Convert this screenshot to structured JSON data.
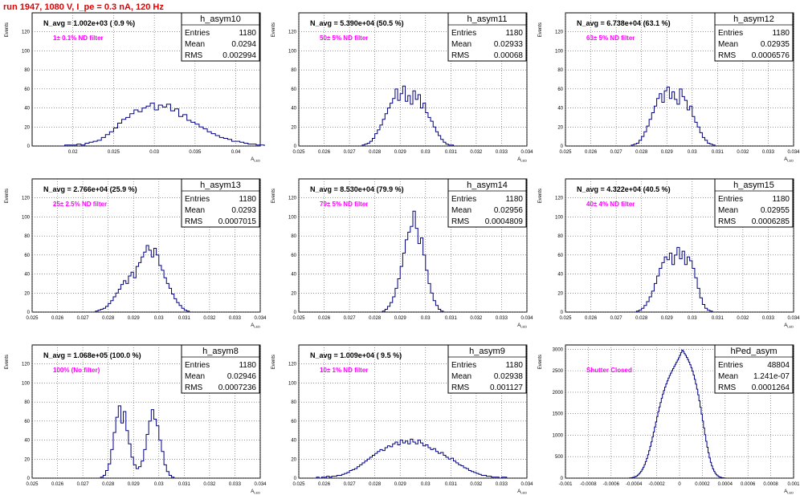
{
  "page": {
    "title": "run 1947,  1080 V, I_pe = 0.3 nA, 120 Hz"
  },
  "chart_data": [
    {
      "type": "histogram",
      "name": "h_asym10",
      "nd_label": "1± 0.1% ND filter",
      "navg": "N_avg = 1.002e+03 ( 0.9 %)",
      "stats": {
        "Entries": "1180",
        "Mean": "0.0294",
        "RMS": "0.002994"
      },
      "xlabel": "A_LED",
      "ylabel": "Events",
      "xlim": [
        0.015,
        0.043
      ],
      "ylim": [
        0,
        140
      ],
      "xticks": [
        0.02,
        0.025,
        0.03,
        0.035,
        0.04
      ],
      "xtick_labels": [
        "0.02",
        "0.025",
        "0.03",
        "0.035",
        "0.04"
      ],
      "yticks": [
        0,
        20,
        40,
        60,
        80,
        100,
        120
      ],
      "grid": true,
      "bins": {
        "start": 0.0185,
        "width": 0.0005,
        "counts": [
          0,
          1,
          1,
          1,
          2,
          1,
          3,
          4,
          5,
          6,
          9,
          12,
          15,
          19,
          24,
          28,
          30,
          34,
          38,
          36,
          40,
          42,
          45,
          38,
          43,
          41,
          44,
          37,
          39,
          31,
          33,
          27,
          25,
          23,
          20,
          18,
          15,
          13,
          11,
          9,
          8,
          7,
          5,
          5,
          4,
          3,
          2,
          2,
          1,
          1
        ]
      }
    },
    {
      "type": "histogram",
      "name": "h_asym11",
      "nd_label": "50± 5% ND filter",
      "navg": "N_avg = 5.390e+04 (50.5 %)",
      "stats": {
        "Entries": "1180",
        "Mean": "0.02933",
        "RMS": "0.00068"
      },
      "xlabel": "A_LED",
      "ylabel": "Events",
      "xlim": [
        0.025,
        0.034
      ],
      "ylim": [
        0,
        140
      ],
      "xticks": [
        0.025,
        0.026,
        0.027,
        0.028,
        0.029,
        0.03,
        0.031,
        0.032,
        0.033,
        0.034
      ],
      "xtick_labels": [
        "0.025",
        "0.026",
        "0.027",
        "0.028",
        "0.029",
        "0.03",
        "0.031",
        "0.032",
        "0.033",
        "0.034"
      ],
      "yticks": [
        0,
        20,
        40,
        60,
        80,
        100,
        120
      ],
      "grid": true,
      "bins": {
        "start": 0.0275,
        "width": 0.0001,
        "counts": [
          1,
          2,
          3,
          5,
          8,
          13,
          17,
          22,
          28,
          34,
          40,
          45,
          50,
          60,
          48,
          55,
          63,
          47,
          53,
          44,
          58,
          49,
          54,
          40,
          45,
          35,
          30,
          26,
          20,
          15,
          11,
          7,
          4,
          2,
          1,
          1
        ]
      }
    },
    {
      "type": "histogram",
      "name": "h_asym12",
      "nd_label": "63± 5% ND filter",
      "navg": "N_avg = 6.738e+04 (63.1 %)",
      "stats": {
        "Entries": "1180",
        "Mean": "0.02935",
        "RMS": "0.0006576"
      },
      "xlabel": "A_LED",
      "ylabel": "Events",
      "xlim": [
        0.025,
        0.034
      ],
      "ylim": [
        0,
        140
      ],
      "xticks": [
        0.025,
        0.026,
        0.027,
        0.028,
        0.029,
        0.03,
        0.031,
        0.032,
        0.033,
        0.034
      ],
      "xtick_labels": [
        "0.025",
        "0.026",
        "0.027",
        "0.028",
        "0.029",
        "0.03",
        "0.031",
        "0.032",
        "0.033",
        "0.034"
      ],
      "yticks": [
        0,
        20,
        40,
        60,
        80,
        100,
        120
      ],
      "grid": true,
      "bins": {
        "start": 0.0276,
        "width": 0.0001,
        "counts": [
          1,
          2,
          3,
          6,
          10,
          15,
          21,
          28,
          35,
          42,
          50,
          55,
          46,
          58,
          62,
          50,
          57,
          49,
          44,
          60,
          52,
          48,
          38,
          42,
          31,
          25,
          20,
          14,
          9,
          6,
          3,
          2,
          1
        ]
      }
    },
    {
      "type": "histogram",
      "name": "h_asym13",
      "nd_label": "25± 2.5% ND filter",
      "navg": "N_avg = 2.766e+04 (25.9 %)",
      "stats": {
        "Entries": "1180",
        "Mean": "0.0293",
        "RMS": "0.0007015"
      },
      "xlabel": "A_LED",
      "ylabel": "Events",
      "xlim": [
        0.025,
        0.034
      ],
      "ylim": [
        0,
        140
      ],
      "xticks": [
        0.025,
        0.026,
        0.027,
        0.028,
        0.029,
        0.03,
        0.031,
        0.032,
        0.033,
        0.034
      ],
      "xtick_labels": [
        "0.025",
        "0.026",
        "0.027",
        "0.028",
        "0.029",
        "0.03",
        "0.031",
        "0.032",
        "0.033",
        "0.034"
      ],
      "yticks": [
        0,
        20,
        40,
        60,
        80,
        100,
        120
      ],
      "grid": true,
      "bins": {
        "start": 0.0275,
        "width": 0.0001,
        "counts": [
          1,
          2,
          3,
          4,
          6,
          9,
          12,
          16,
          20,
          24,
          29,
          33,
          30,
          38,
          42,
          36,
          48,
          52,
          58,
          63,
          70,
          65,
          58,
          67,
          60,
          49,
          44,
          36,
          30,
          25,
          19,
          14,
          10,
          7,
          4,
          2,
          1
        ]
      }
    },
    {
      "type": "histogram",
      "name": "h_asym14",
      "nd_label": "79± 5% ND filter",
      "navg": "N_avg = 8.530e+04 (79.9 %)",
      "stats": {
        "Entries": "1180",
        "Mean": "0.02956",
        "RMS": "0.0004809"
      },
      "xlabel": "A_LED",
      "ylabel": "Events",
      "xlim": [
        0.025,
        0.034
      ],
      "ylim": [
        0,
        140
      ],
      "xticks": [
        0.025,
        0.026,
        0.027,
        0.028,
        0.029,
        0.03,
        0.031,
        0.032,
        0.033,
        0.034
      ],
      "xtick_labels": [
        "0.025",
        "0.026",
        "0.027",
        "0.028",
        "0.029",
        "0.03",
        "0.031",
        "0.032",
        "0.033",
        "0.034"
      ],
      "yticks": [
        0,
        20,
        40,
        60,
        80,
        100,
        120
      ],
      "grid": true,
      "bins": {
        "start": 0.0283,
        "width": 0.0001,
        "counts": [
          1,
          3,
          6,
          10,
          16,
          25,
          35,
          48,
          62,
          76,
          84,
          90,
          106,
          88,
          72,
          78,
          60,
          44,
          30,
          20,
          12,
          7,
          3,
          1
        ]
      }
    },
    {
      "type": "histogram",
      "name": "h_asym15",
      "nd_label": "40± 4% ND filter",
      "navg": "N_avg = 4.322e+04 (40.5 %)",
      "stats": {
        "Entries": "1180",
        "Mean": "0.02955",
        "RMS": "0.0006285"
      },
      "xlabel": "A_LED",
      "ylabel": "Events",
      "xlim": [
        0.025,
        0.034
      ],
      "ylim": [
        0,
        140
      ],
      "xticks": [
        0.025,
        0.026,
        0.027,
        0.028,
        0.029,
        0.03,
        0.031,
        0.032,
        0.033,
        0.034
      ],
      "xtick_labels": [
        "0.025",
        "0.026",
        "0.027",
        "0.028",
        "0.029",
        "0.03",
        "0.031",
        "0.032",
        "0.033",
        "0.034"
      ],
      "yticks": [
        0,
        20,
        40,
        60,
        80,
        100,
        120
      ],
      "grid": true,
      "bins": {
        "start": 0.0278,
        "width": 0.0001,
        "counts": [
          1,
          2,
          4,
          7,
          11,
          16,
          22,
          30,
          38,
          46,
          52,
          58,
          55,
          62,
          50,
          60,
          68,
          56,
          64,
          50,
          58,
          54,
          46,
          36,
          25,
          15,
          8,
          4,
          2,
          1
        ]
      }
    },
    {
      "type": "histogram",
      "name": "h_asym8",
      "nd_label": "100% (No filter)",
      "navg": "N_avg = 1.068e+05 (100.0 %)",
      "stats": {
        "Entries": "1180",
        "Mean": "0.02946",
        "RMS": "0.0007236"
      },
      "xlabel": "A_LED",
      "ylabel": "Events",
      "xlim": [
        0.025,
        0.034
      ],
      "ylim": [
        0,
        140
      ],
      "xticks": [
        0.025,
        0.026,
        0.027,
        0.028,
        0.029,
        0.03,
        0.031,
        0.032,
        0.033,
        0.034
      ],
      "xtick_labels": [
        "0.025",
        "0.026",
        "0.027",
        "0.028",
        "0.029",
        "0.03",
        "0.031",
        "0.032",
        "0.033",
        "0.034"
      ],
      "yticks": [
        0,
        20,
        40,
        60,
        80,
        100,
        120
      ],
      "grid": true,
      "bins": {
        "start": 0.0277,
        "width": 0.0001,
        "counts": [
          1,
          3,
          8,
          15,
          30,
          48,
          64,
          76,
          58,
          70,
          50,
          36,
          22,
          14,
          10,
          12,
          18,
          30,
          46,
          60,
          72,
          62,
          55,
          40,
          28,
          14,
          7,
          3,
          1
        ]
      }
    },
    {
      "type": "histogram",
      "name": "h_asym9",
      "nd_label": "10± 1% ND filter",
      "navg": "N_avg = 1.009e+04 ( 9.5 %)",
      "stats": {
        "Entries": "1180",
        "Mean": "0.02938",
        "RMS": "0.001127"
      },
      "xlabel": "A_LED",
      "ylabel": "Events",
      "xlim": [
        0.025,
        0.034
      ],
      "ylim": [
        0,
        140
      ],
      "xticks": [
        0.025,
        0.026,
        0.027,
        0.028,
        0.029,
        0.03,
        0.031,
        0.032,
        0.033,
        0.034
      ],
      "xtick_labels": [
        "0.025",
        "0.026",
        "0.027",
        "0.028",
        "0.029",
        "0.03",
        "0.031",
        "0.032",
        "0.033",
        "0.034"
      ],
      "yticks": [
        0,
        20,
        40,
        60,
        80,
        100,
        120
      ],
      "grid": true,
      "bins": {
        "start": 0.0256,
        "width": 0.0001,
        "counts": [
          0,
          1,
          0,
          1,
          1,
          2,
          1,
          2,
          2,
          3,
          3,
          4,
          5,
          6,
          8,
          9,
          10,
          12,
          14,
          16,
          18,
          20,
          22,
          24,
          26,
          28,
          30,
          29,
          32,
          34,
          33,
          36,
          38,
          35,
          40,
          37,
          39,
          36,
          41,
          38,
          36,
          40,
          37,
          34,
          35,
          32,
          30,
          31,
          28,
          26,
          27,
          24,
          22,
          20,
          21,
          18,
          16,
          14,
          13,
          11,
          10,
          8,
          7,
          6,
          5,
          4,
          3,
          3,
          2,
          2,
          1,
          1,
          1,
          0,
          1,
          1
        ]
      }
    },
    {
      "type": "histogram",
      "name": "hPed_asym",
      "nd_label": "Shutter Closed",
      "navg": "",
      "stats": {
        "Entries": "48804",
        "Mean": "1.241e-07",
        "RMS": "0.0001264"
      },
      "xlabel": "A_LED",
      "ylabel": "Events",
      "xlim": [
        -0.001,
        0.001
      ],
      "ylim": [
        0,
        3100
      ],
      "xticks": [
        -0.001,
        -0.0008,
        -0.0006,
        -0.0004,
        -0.0002,
        0,
        0.0002,
        0.0004,
        0.0006,
        0.0008,
        0.001
      ],
      "xtick_labels": [
        "-0.001",
        "-0.0008",
        "-0.0006",
        "-0.0004",
        "-0.0002",
        "0",
        "0.0002",
        "0.0004",
        "0.0006",
        "0.0008",
        "0.001"
      ],
      "yticks": [
        0,
        500,
        1000,
        1500,
        2000,
        2500,
        3000
      ],
      "grid": true,
      "bins": {
        "start": -0.00044,
        "width": 1e-05,
        "counts": [
          5,
          8,
          12,
          18,
          25,
          35,
          50,
          70,
          95,
          125,
          160,
          205,
          255,
          315,
          385,
          460,
          545,
          640,
          740,
          845,
          960,
          1075,
          1190,
          1310,
          1430,
          1545,
          1655,
          1760,
          1860,
          1955,
          2040,
          2120,
          2195,
          2265,
          2330,
          2390,
          2445,
          2500,
          2550,
          2600,
          2650,
          2700,
          2750,
          2800,
          2860,
          2920,
          2980,
          2950,
          2900,
          2860,
          2810,
          2760,
          2700,
          2640,
          2570,
          2490,
          2400,
          2300,
          2190,
          2070,
          1940,
          1800,
          1650,
          1490,
          1330,
          1170,
          1010,
          860,
          720,
          590,
          470,
          370,
          285,
          215,
          160,
          115,
          80,
          55,
          38,
          25,
          16,
          10,
          6,
          3
        ]
      }
    }
  ]
}
